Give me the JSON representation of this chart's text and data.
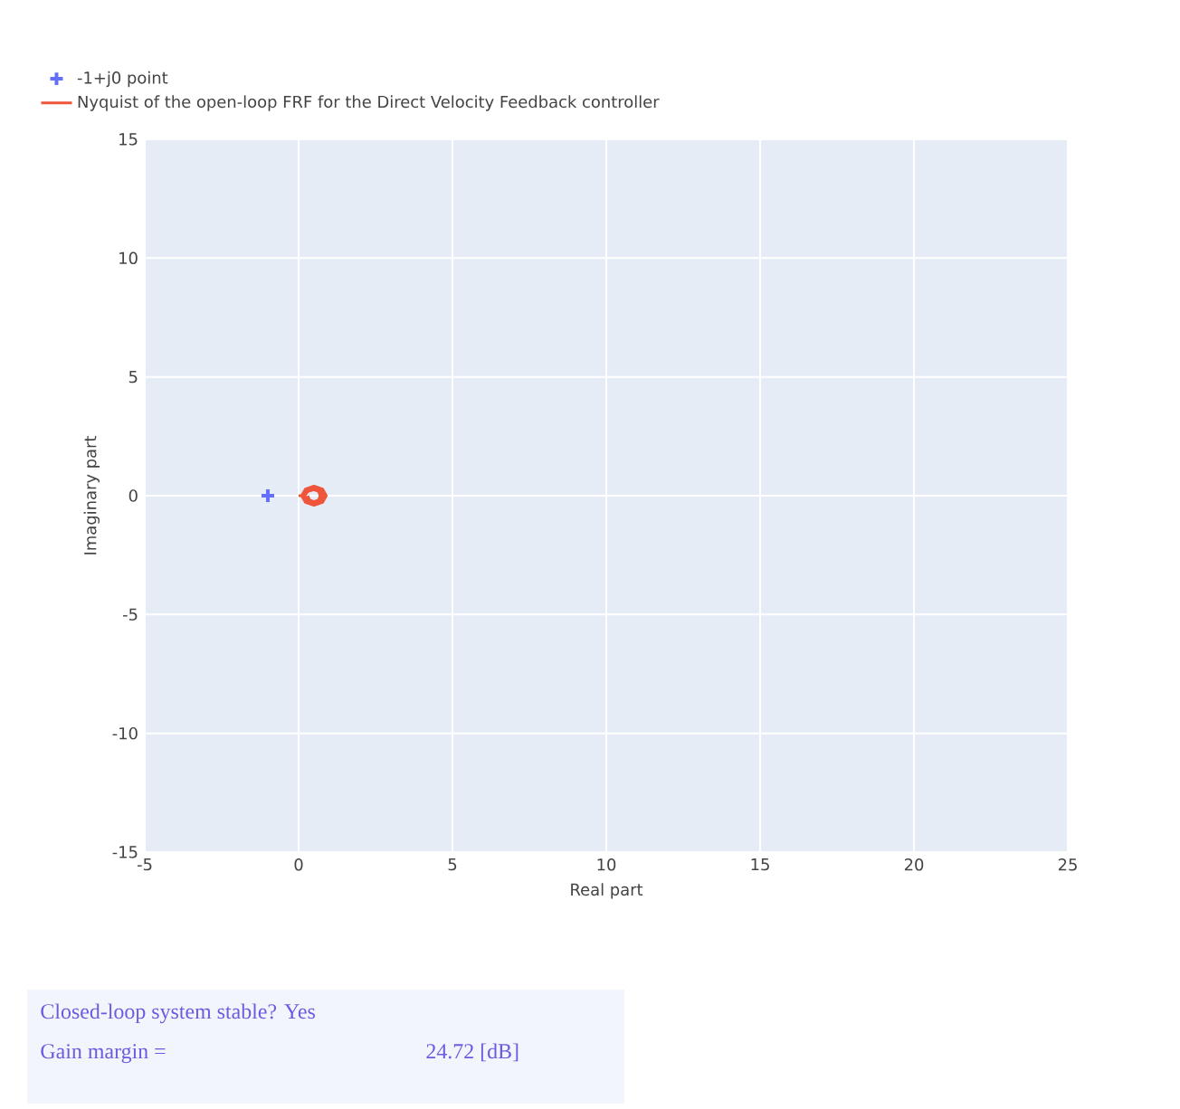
{
  "chart_data": {
    "type": "scatter",
    "xlabel": "Real part",
    "ylabel": "Imaginary part",
    "xlim": [
      -5,
      25
    ],
    "xticks": [
      -5,
      0,
      5,
      10,
      15,
      20,
      25
    ],
    "ylim": [
      -15,
      15
    ],
    "yticks": [
      -15,
      -10,
      -5,
      0,
      5,
      10,
      15
    ],
    "grid": true,
    "legend": "top left",
    "series": [
      {
        "name": "-1+j0 point",
        "marker": "cross",
        "color": "#636efa",
        "x": [
          -1
        ],
        "values": [
          0
        ]
      },
      {
        "name": "Nyquist of the open-loop FRF for the Direct Velocity Feedback controller",
        "type": "line",
        "marker": "none",
        "line_style": "solid",
        "color": "#ef553b",
        "x": [
          0.0,
          0.1,
          0.22,
          0.5,
          0.78,
          0.9,
          0.78,
          0.5,
          0.22,
          0.1,
          0.15,
          0.3,
          0.5,
          0.7,
          0.8,
          0.7,
          0.5,
          0.3,
          0.2,
          0.3,
          0.5,
          0.65,
          0.7,
          0.65,
          0.5,
          0.35,
          0.3
        ],
        "values": [
          0.0,
          0.0,
          0.28,
          0.4,
          0.28,
          0.0,
          -0.28,
          -0.4,
          -0.28,
          0.0,
          0.0,
          0.25,
          0.33,
          0.25,
          0.0,
          -0.25,
          -0.33,
          -0.25,
          0.0,
          0.18,
          0.25,
          0.18,
          0.0,
          -0.18,
          -0.25,
          -0.18,
          0.0
        ]
      }
    ],
    "annotations": [
      "Closed-loop system stable? Yes",
      "Gain margin =",
      "24.72 [dB]"
    ]
  }
}
